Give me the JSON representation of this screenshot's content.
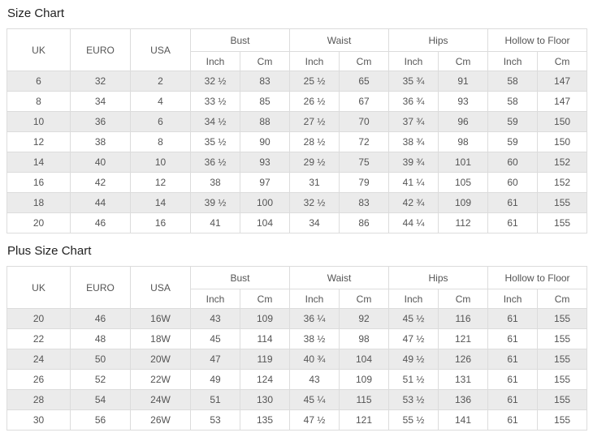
{
  "page": {
    "background_color": "#ffffff",
    "stripe_color": "#ebebeb",
    "border_color": "#dcdcdc",
    "text_color": "#555555",
    "title_color": "#222222"
  },
  "chart_data": [
    {
      "type": "table",
      "title": "Size Chart",
      "flat_columns": [
        "UK",
        "EURO",
        "USA"
      ],
      "column_groups": [
        "Bust",
        "Waist",
        "Hips",
        "Hollow to Floor"
      ],
      "unit_labels": [
        "Inch",
        "Cm"
      ],
      "columns": [
        "UK",
        "EURO",
        "USA",
        "Bust Inch",
        "Bust Cm",
        "Waist Inch",
        "Waist Cm",
        "Hips Inch",
        "Hips Cm",
        "Hollow to Floor Inch",
        "Hollow to Floor Cm"
      ],
      "rows": [
        [
          "6",
          "32",
          "2",
          "32 ½",
          "83",
          "25 ½",
          "65",
          "35 ¾",
          "91",
          "58",
          "147"
        ],
        [
          "8",
          "34",
          "4",
          "33 ½",
          "85",
          "26 ½",
          "67",
          "36 ¾",
          "93",
          "58",
          "147"
        ],
        [
          "10",
          "36",
          "6",
          "34 ½",
          "88",
          "27 ½",
          "70",
          "37 ¾",
          "96",
          "59",
          "150"
        ],
        [
          "12",
          "38",
          "8",
          "35 ½",
          "90",
          "28 ½",
          "72",
          "38 ¾",
          "98",
          "59",
          "150"
        ],
        [
          "14",
          "40",
          "10",
          "36 ½",
          "93",
          "29 ½",
          "75",
          "39 ¾",
          "101",
          "60",
          "152"
        ],
        [
          "16",
          "42",
          "12",
          "38",
          "97",
          "31",
          "79",
          "41 ¼",
          "105",
          "60",
          "152"
        ],
        [
          "18",
          "44",
          "14",
          "39 ½",
          "100",
          "32 ½",
          "83",
          "42 ¾",
          "109",
          "61",
          "155"
        ],
        [
          "20",
          "46",
          "16",
          "41",
          "104",
          "34",
          "86",
          "44 ¼",
          "112",
          "61",
          "155"
        ]
      ]
    },
    {
      "type": "table",
      "title": "Plus Size Chart",
      "flat_columns": [
        "UK",
        "EURO",
        "USA"
      ],
      "column_groups": [
        "Bust",
        "Waist",
        "Hips",
        "Hollow to Floor"
      ],
      "unit_labels": [
        "Inch",
        "Cm"
      ],
      "columns": [
        "UK",
        "EURO",
        "USA",
        "Bust Inch",
        "Bust Cm",
        "Waist Inch",
        "Waist Cm",
        "Hips Inch",
        "Hips Cm",
        "Hollow to Floor Inch",
        "Hollow to Floor Cm"
      ],
      "rows": [
        [
          "20",
          "46",
          "16W",
          "43",
          "109",
          "36 ¼",
          "92",
          "45 ½",
          "116",
          "61",
          "155"
        ],
        [
          "22",
          "48",
          "18W",
          "45",
          "114",
          "38 ½",
          "98",
          "47 ½",
          "121",
          "61",
          "155"
        ],
        [
          "24",
          "50",
          "20W",
          "47",
          "119",
          "40 ¾",
          "104",
          "49 ½",
          "126",
          "61",
          "155"
        ],
        [
          "26",
          "52",
          "22W",
          "49",
          "124",
          "43",
          "109",
          "51 ½",
          "131",
          "61",
          "155"
        ],
        [
          "28",
          "54",
          "24W",
          "51",
          "130",
          "45 ¼",
          "115",
          "53 ½",
          "136",
          "61",
          "155"
        ],
        [
          "30",
          "56",
          "26W",
          "53",
          "135",
          "47 ½",
          "121",
          "55 ½",
          "141",
          "61",
          "155"
        ]
      ]
    }
  ]
}
